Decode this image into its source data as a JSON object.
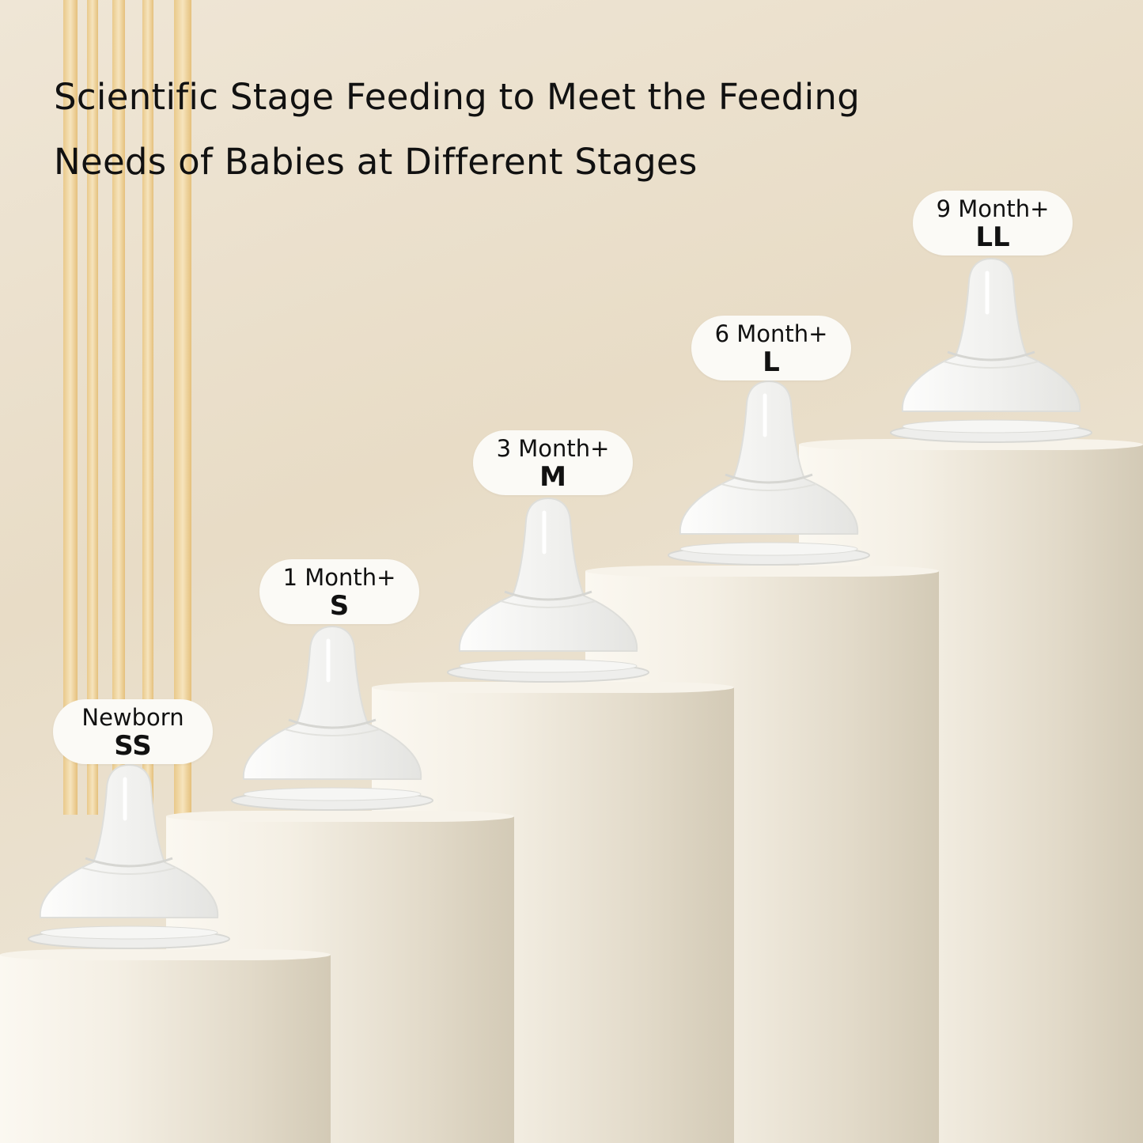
{
  "title": {
    "line1": "Scientific Stage Feeding to Meet the Feeding",
    "line2": "Needs of Babies at Different Stages"
  },
  "stages": [
    {
      "age": "Newborn",
      "size": "SS"
    },
    {
      "age": "1 Month+",
      "size": "S"
    },
    {
      "age": "3 Month+",
      "size": "M"
    },
    {
      "age": "6 Month+",
      "size": "L"
    },
    {
      "age": "9 Month+",
      "size": "LL"
    }
  ],
  "colors": {
    "background": "#ece2d0",
    "pillar": "#f4efe4",
    "stripe": "#e9c98a",
    "label_bg": "#fbfaf6"
  }
}
